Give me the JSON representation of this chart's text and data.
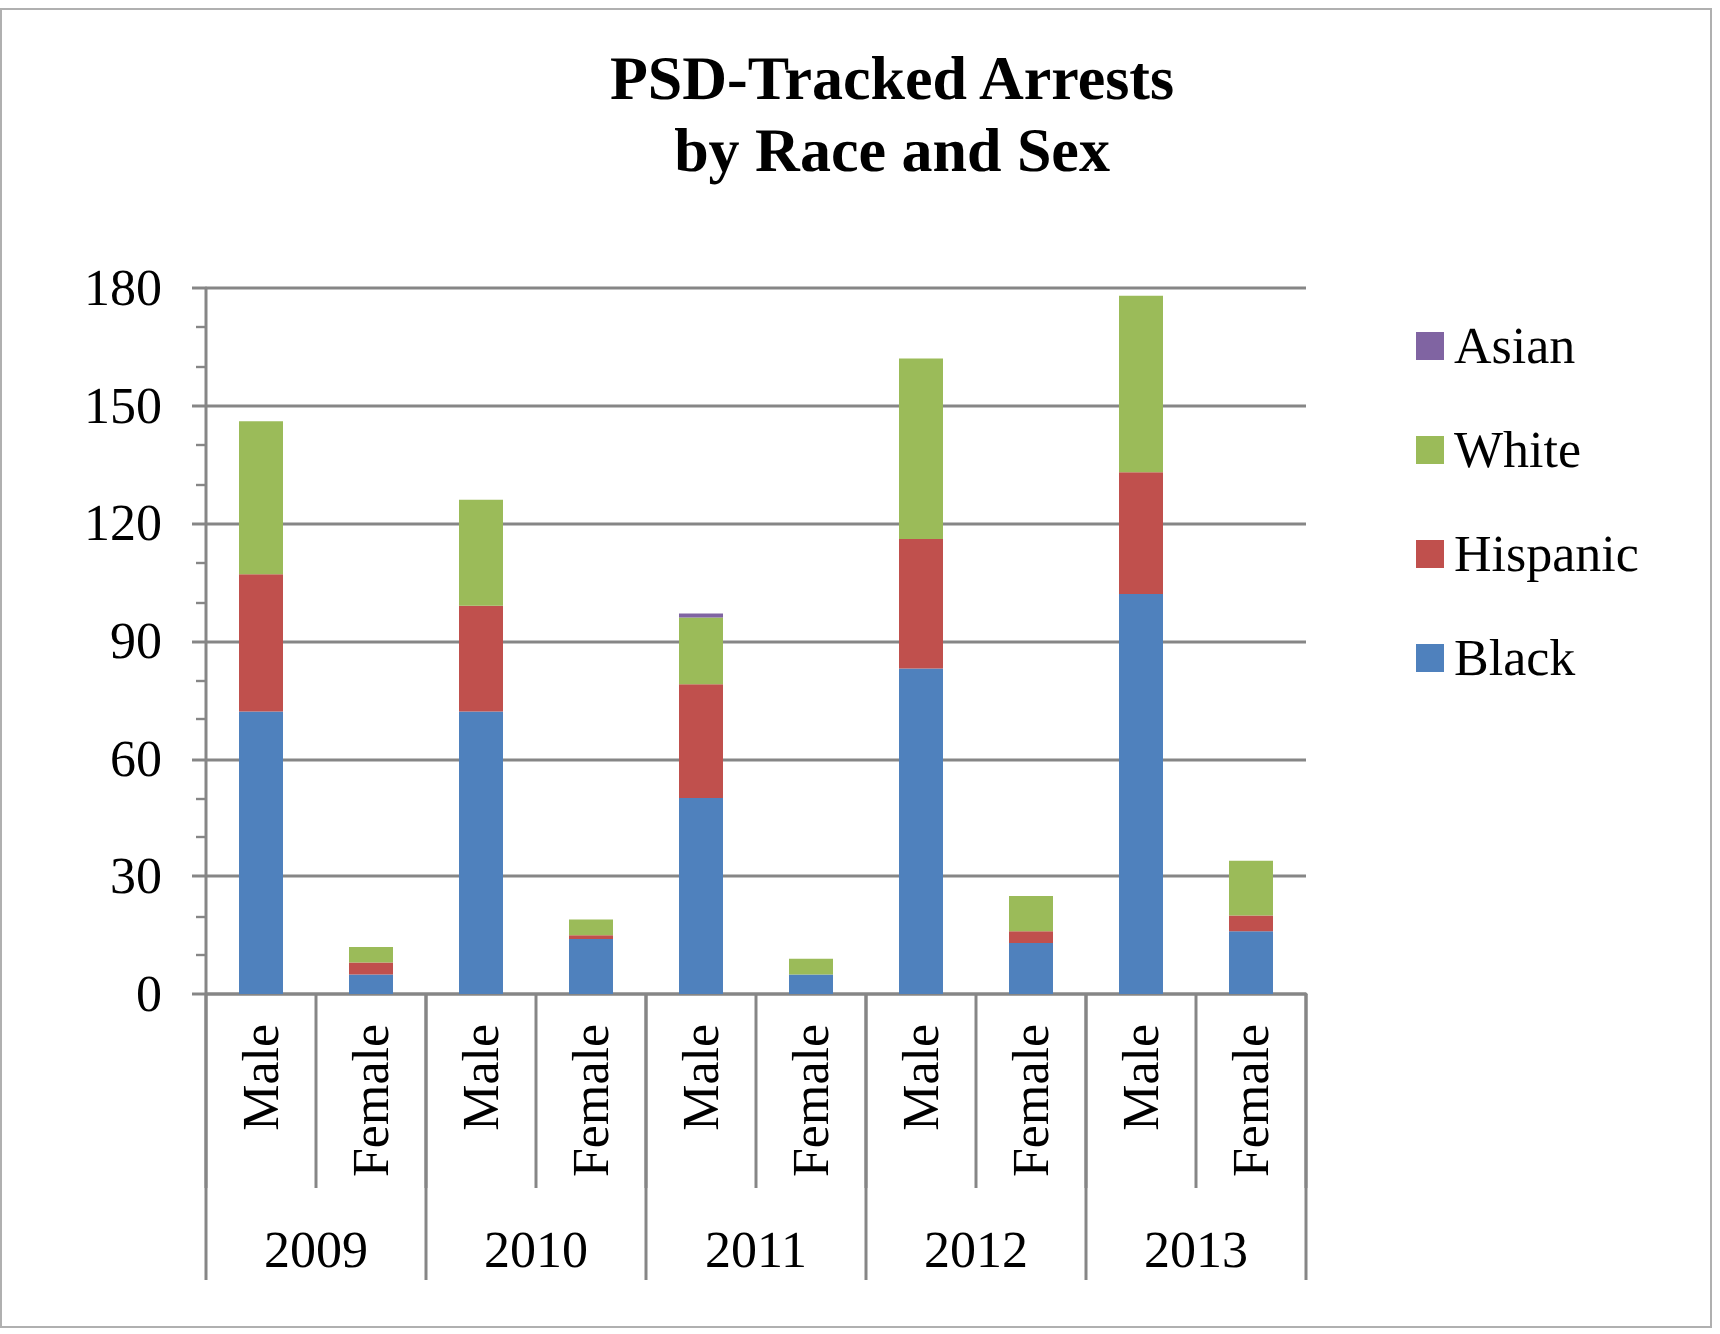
{
  "chart_data": {
    "type": "bar",
    "title": "PSD-Tracked Arrests\nby Race and Sex",
    "categories": [
      "Male",
      "Female",
      "Male",
      "Female",
      "Male",
      "Female",
      "Male",
      "Female",
      "Male",
      "Female"
    ],
    "annotations": [
      "2009",
      "2010",
      "2011",
      "2012",
      "2013"
    ],
    "series": [
      {
        "name": "Black",
        "color": "#4f81bd",
        "values": [
          72,
          5,
          72,
          14,
          50,
          5,
          83,
          13,
          102,
          16
        ]
      },
      {
        "name": "Hispanic",
        "color": "#c0504d",
        "values": [
          35,
          3,
          27,
          1,
          29,
          0,
          33,
          3,
          31,
          4
        ]
      },
      {
        "name": "White",
        "color": "#9bbb59",
        "values": [
          39,
          4,
          27,
          4,
          17,
          4,
          46,
          9,
          45,
          14
        ]
      },
      {
        "name": "Asian",
        "color": "#8064a2",
        "values": [
          0,
          0,
          0,
          0,
          1,
          0,
          0,
          0,
          0,
          0
        ]
      }
    ],
    "stacked": true,
    "ylim": [
      0,
      180
    ],
    "yticks": [
      0,
      30,
      60,
      90,
      120,
      150,
      180
    ],
    "grid": "y",
    "legend": "right"
  }
}
